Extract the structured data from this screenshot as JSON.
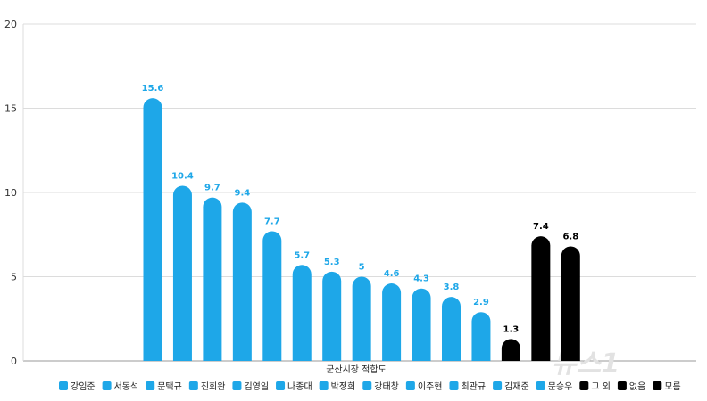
{
  "chart_data": {
    "type": "bar",
    "xlabel": "군산시장 적합도",
    "ylabel": "",
    "ylim": [
      0,
      20
    ],
    "yticks": [
      0,
      5,
      10,
      15,
      20
    ],
    "grid": true,
    "legend_position": "bottom",
    "categories": [
      "강임준",
      "서동석",
      "문택규",
      "진희완",
      "김영일",
      "나종대",
      "박정희",
      "강태창",
      "이주현",
      "최관규",
      "김재준",
      "문승우",
      "그 외",
      "없음",
      "모름"
    ],
    "values": [
      15.6,
      10.4,
      9.7,
      9.4,
      7.7,
      5.7,
      5.3,
      5,
      4.6,
      4.3,
      3.8,
      2.9,
      1.3,
      7.4,
      6.8
    ],
    "value_labels": [
      "15.6",
      "10.4",
      "9.7",
      "9.4",
      "7.7",
      "5.7",
      "5.3",
      "5",
      "4.6",
      "4.3",
      "3.8",
      "2.9",
      "1.3",
      "7.4",
      "6.8"
    ],
    "colors": [
      "#1ea7e8",
      "#1ea7e8",
      "#1ea7e8",
      "#1ea7e8",
      "#1ea7e8",
      "#1ea7e8",
      "#1ea7e8",
      "#1ea7e8",
      "#1ea7e8",
      "#1ea7e8",
      "#1ea7e8",
      "#1ea7e8",
      "#000000",
      "#000000",
      "#000000"
    ],
    "label_colors": [
      "#1ea7e8",
      "#1ea7e8",
      "#1ea7e8",
      "#1ea7e8",
      "#1ea7e8",
      "#1ea7e8",
      "#1ea7e8",
      "#1ea7e8",
      "#1ea7e8",
      "#1ea7e8",
      "#1ea7e8",
      "#1ea7e8",
      "#000000",
      "#000000",
      "#000000"
    ]
  },
  "watermark": "뉴스1"
}
